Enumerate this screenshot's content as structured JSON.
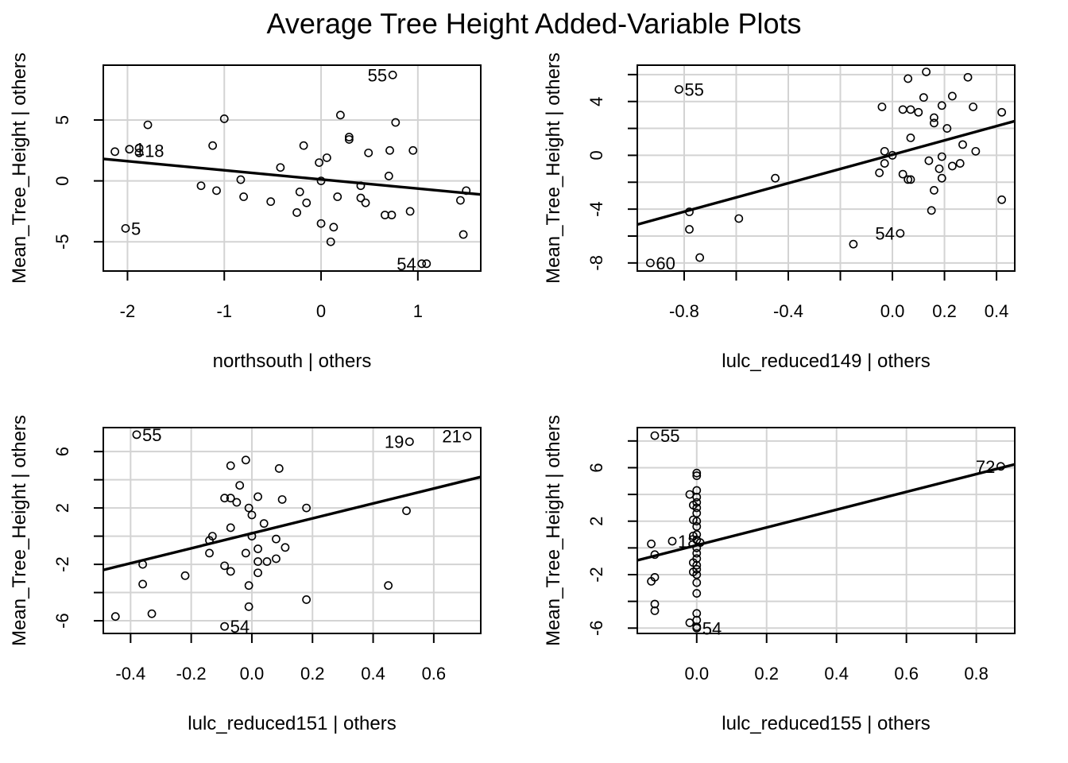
{
  "title": "Average Tree Height Added-Variable Plots",
  "chart_data": [
    {
      "type": "scatter",
      "xlabel": "northsouth | others",
      "ylabel": "Mean_Tree_Height  | others",
      "xlim": [
        -2.25,
        1.65
      ],
      "ylim": [
        -7.4,
        9.5
      ],
      "xticks": [
        -2,
        -1,
        0,
        1
      ],
      "yticks": [
        -5,
        0,
        5
      ],
      "xtick_labels": [
        "-2",
        "-1",
        "0",
        "1"
      ],
      "ytick_labels": [
        "-5",
        "0",
        "5"
      ],
      "grid": true,
      "fit_line": {
        "intercept": 0.12,
        "slope": -0.75
      },
      "points": [
        [
          -2.13,
          2.4
        ],
        [
          -1.98,
          2.6
        ],
        [
          -1.88,
          2.7
        ],
        [
          -1.88,
          2.3
        ],
        [
          -1.79,
          4.6
        ],
        [
          -2.02,
          -3.9
        ],
        [
          -1.24,
          -0.4
        ],
        [
          -1.12,
          2.9
        ],
        [
          -1.08,
          -0.8
        ],
        [
          -1.0,
          5.1
        ],
        [
          -0.83,
          0.1
        ],
        [
          -0.8,
          -1.3
        ],
        [
          -0.52,
          -1.7
        ],
        [
          -0.42,
          1.1
        ],
        [
          -0.25,
          -2.6
        ],
        [
          -0.22,
          -0.9
        ],
        [
          -0.18,
          2.9
        ],
        [
          -0.15,
          -1.8
        ],
        [
          -0.02,
          1.5
        ],
        [
          0.0,
          -3.5
        ],
        [
          0.0,
          0.0
        ],
        [
          0.06,
          1.9
        ],
        [
          0.1,
          -5.0
        ],
        [
          0.13,
          -3.8
        ],
        [
          0.17,
          -1.3
        ],
        [
          0.2,
          5.4
        ],
        [
          0.29,
          3.6
        ],
        [
          0.29,
          3.4
        ],
        [
          0.41,
          -0.4
        ],
        [
          0.41,
          -1.4
        ],
        [
          0.46,
          -1.8
        ],
        [
          0.49,
          2.3
        ],
        [
          0.66,
          -2.8
        ],
        [
          0.7,
          0.4
        ],
        [
          0.71,
          2.5
        ],
        [
          0.73,
          -2.8
        ],
        [
          0.74,
          8.7
        ],
        [
          0.77,
          4.8
        ],
        [
          0.92,
          -2.5
        ],
        [
          0.95,
          2.5
        ],
        [
          1.04,
          -6.8
        ],
        [
          1.09,
          -6.8
        ],
        [
          1.44,
          -1.6
        ],
        [
          1.47,
          -4.4
        ],
        [
          1.5,
          -0.8
        ]
      ],
      "labels": [
        {
          "text": "55",
          "x": 0.74,
          "y": 8.7
        },
        {
          "text": "1",
          "x": -1.98,
          "y": 2.6
        },
        {
          "text": "18",
          "x": -1.88,
          "y": 2.5
        },
        {
          "text": "5",
          "x": -2.02,
          "y": -3.9
        },
        {
          "text": "54",
          "x": 1.04,
          "y": -6.8
        }
      ]
    },
    {
      "type": "scatter",
      "xlabel": "lulc_reduced149 | others",
      "ylabel": "Mean_Tree_Height  | others",
      "xlim": [
        -0.98,
        0.47
      ],
      "ylim": [
        -8.6,
        6.7
      ],
      "xticks": [
        -0.8,
        -0.4,
        0.0,
        0.2,
        0.4
      ],
      "yticks": [
        -8,
        -4,
        0,
        4
      ],
      "xtick_labels": [
        "-0.8",
        "-0.4",
        "0.0",
        "0.2",
        "0.4"
      ],
      "ytick_labels": [
        "-8",
        "-4",
        "0",
        "4"
      ],
      "xminor": [
        -1.0,
        -0.6,
        -0.2
      ],
      "yminor": [
        -6,
        -2,
        2,
        6
      ],
      "grid": true,
      "fit_line": {
        "intercept": 0.05,
        "slope": 5.3
      },
      "points": [
        [
          -0.82,
          4.9
        ],
        [
          -0.93,
          -8.0
        ],
        [
          -0.78,
          -4.2
        ],
        [
          -0.78,
          -5.5
        ],
        [
          -0.74,
          -7.6
        ],
        [
          -0.59,
          -4.7
        ],
        [
          -0.45,
          -1.7
        ],
        [
          -0.15,
          -6.6
        ],
        [
          0.03,
          -5.8
        ],
        [
          -0.05,
          -1.3
        ],
        [
          -0.04,
          3.6
        ],
        [
          -0.03,
          0.3
        ],
        [
          -0.03,
          -0.6
        ],
        [
          0.0,
          0.0
        ],
        [
          0.04,
          3.4
        ],
        [
          0.04,
          -1.4
        ],
        [
          0.06,
          5.7
        ],
        [
          0.06,
          -1.8
        ],
        [
          0.07,
          3.4
        ],
        [
          0.07,
          1.3
        ],
        [
          0.07,
          -1.8
        ],
        [
          0.1,
          3.2
        ],
        [
          0.12,
          4.3
        ],
        [
          0.13,
          6.2
        ],
        [
          0.14,
          -0.4
        ],
        [
          0.15,
          -4.1
        ],
        [
          0.16,
          2.8
        ],
        [
          0.16,
          2.4
        ],
        [
          0.16,
          -2.6
        ],
        [
          0.18,
          -1.0
        ],
        [
          0.19,
          3.7
        ],
        [
          0.19,
          -0.1
        ],
        [
          0.19,
          -1.7
        ],
        [
          0.21,
          2.0
        ],
        [
          0.23,
          4.4
        ],
        [
          0.23,
          -0.8
        ],
        [
          0.26,
          -0.6
        ],
        [
          0.27,
          0.8
        ],
        [
          0.29,
          5.8
        ],
        [
          0.31,
          3.6
        ],
        [
          0.32,
          0.3
        ],
        [
          0.42,
          3.2
        ],
        [
          0.42,
          -3.3
        ]
      ],
      "labels": [
        {
          "text": "55",
          "x": -0.82,
          "y": 4.9
        },
        {
          "text": "54",
          "x": 0.03,
          "y": -5.8
        },
        {
          "text": "60",
          "x": -0.93,
          "y": -8.0
        }
      ]
    },
    {
      "type": "scatter",
      "xlabel": "lulc_reduced151 | others",
      "ylabel": "Mean_Tree_Height  | others",
      "xlim": [
        -0.49,
        0.755
      ],
      "ylim": [
        -6.9,
        7.7
      ],
      "xticks": [
        -0.4,
        -0.2,
        0.0,
        0.2,
        0.4,
        0.6
      ],
      "yticks": [
        -6,
        -2,
        2,
        6
      ],
      "xtick_labels": [
        "-0.4",
        "-0.2",
        "0.0",
        "0.2",
        "0.4",
        "0.6"
      ],
      "ytick_labels": [
        "-6",
        "-2",
        "2",
        "6"
      ],
      "yminor": [
        -4,
        0,
        4
      ],
      "grid": true,
      "fit_line": {
        "intercept": 0.2,
        "slope": 5.3
      },
      "points": [
        [
          -0.38,
          7.2
        ],
        [
          -0.45,
          -5.7
        ],
        [
          -0.36,
          -2.0
        ],
        [
          -0.36,
          -3.4
        ],
        [
          -0.33,
          -5.5
        ],
        [
          -0.22,
          -2.8
        ],
        [
          -0.14,
          -0.3
        ],
        [
          -0.13,
          0.0
        ],
        [
          -0.14,
          -1.2
        ],
        [
          -0.09,
          2.7
        ],
        [
          -0.09,
          -2.1
        ],
        [
          -0.07,
          2.7
        ],
        [
          -0.07,
          5.0
        ],
        [
          -0.07,
          0.6
        ],
        [
          -0.07,
          -2.5
        ],
        [
          -0.05,
          2.4
        ],
        [
          -0.04,
          3.6
        ],
        [
          -0.02,
          5.4
        ],
        [
          -0.02,
          -1.2
        ],
        [
          -0.01,
          2.0
        ],
        [
          -0.01,
          -5.0
        ],
        [
          -0.01,
          -3.5
        ],
        [
          0.0,
          0.0
        ],
        [
          0.0,
          1.5
        ],
        [
          0.02,
          2.8
        ],
        [
          0.02,
          -0.9
        ],
        [
          0.02,
          -1.8
        ],
        [
          0.02,
          -2.6
        ],
        [
          0.04,
          0.9
        ],
        [
          0.05,
          -1.8
        ],
        [
          0.08,
          -0.2
        ],
        [
          0.08,
          -1.6
        ],
        [
          0.09,
          4.8
        ],
        [
          0.1,
          2.6
        ],
        [
          0.11,
          -0.8
        ],
        [
          0.18,
          2.0
        ],
        [
          0.18,
          -4.5
        ],
        [
          0.45,
          -3.5
        ],
        [
          0.51,
          1.8
        ],
        [
          0.52,
          6.7
        ],
        [
          0.71,
          7.1
        ],
        [
          -0.09,
          -6.4
        ]
      ],
      "labels": [
        {
          "text": "55",
          "x": -0.38,
          "y": 7.2
        },
        {
          "text": "19",
          "x": 0.52,
          "y": 6.7
        },
        {
          "text": "21",
          "x": 0.71,
          "y": 7.1
        },
        {
          "text": "54",
          "x": -0.09,
          "y": -6.4
        }
      ]
    },
    {
      "type": "scatter",
      "xlabel": "lulc_reduced155 | others",
      "ylabel": "Mean_Tree_Height  | others",
      "xlim": [
        -0.17,
        0.91
      ],
      "ylim": [
        -6.4,
        9.0
      ],
      "xticks": [
        0.0,
        0.2,
        0.4,
        0.6,
        0.8
      ],
      "yticks": [
        -6,
        -2,
        2,
        6
      ],
      "xtick_labels": [
        "0.0",
        "0.2",
        "0.4",
        "0.6",
        "0.8"
      ],
      "ytick_labels": [
        "-6",
        "-2",
        "2",
        "6"
      ],
      "yminor": [
        -4,
        0,
        4,
        8
      ],
      "grid": true,
      "fit_line": {
        "intercept": 0.2,
        "slope": 6.65
      },
      "points": [
        [
          -0.12,
          8.4
        ],
        [
          -0.13,
          0.3
        ],
        [
          -0.12,
          -0.5
        ],
        [
          -0.13,
          -2.5
        ],
        [
          -0.12,
          -2.2
        ],
        [
          -0.12,
          -4.2
        ],
        [
          -0.12,
          -4.7
        ],
        [
          -0.07,
          0.5
        ],
        [
          0.87,
          6.1
        ],
        [
          -0.02,
          -5.6
        ],
        [
          0.0,
          -5.9
        ],
        [
          0.0,
          -6.0
        ],
        [
          0.0,
          5.6
        ],
        [
          0.0,
          5.4
        ],
        [
          0.0,
          4.3
        ],
        [
          0.0,
          3.8
        ],
        [
          0.0,
          3.4
        ],
        [
          0.0,
          3.0
        ],
        [
          0.0,
          2.6
        ],
        [
          0.0,
          2.0
        ],
        [
          0.0,
          1.6
        ],
        [
          0.0,
          1.0
        ],
        [
          0.0,
          0.6
        ],
        [
          0.0,
          0.0
        ],
        [
          0.0,
          -0.4
        ],
        [
          0.0,
          -0.8
        ],
        [
          0.0,
          -1.3
        ],
        [
          0.0,
          -1.6
        ],
        [
          0.0,
          -2.0
        ],
        [
          0.0,
          -2.6
        ],
        [
          0.0,
          -3.4
        ],
        [
          0.0,
          -4.9
        ],
        [
          0.0,
          -5.4
        ],
        [
          -0.01,
          3.2
        ],
        [
          -0.01,
          2.1
        ],
        [
          -0.01,
          0.9
        ],
        [
          -0.01,
          -1.1
        ],
        [
          -0.01,
          -1.8
        ],
        [
          0.01,
          0.4
        ],
        [
          -0.02,
          4.0
        ]
      ],
      "labels": [
        {
          "text": "55",
          "x": -0.12,
          "y": 8.4
        },
        {
          "text": "18",
          "x": -0.07,
          "y": 0.5
        },
        {
          "text": "72",
          "x": 0.87,
          "y": 6.1
        },
        {
          "text": "54",
          "x": 0.0,
          "y": -6.0
        }
      ]
    }
  ]
}
